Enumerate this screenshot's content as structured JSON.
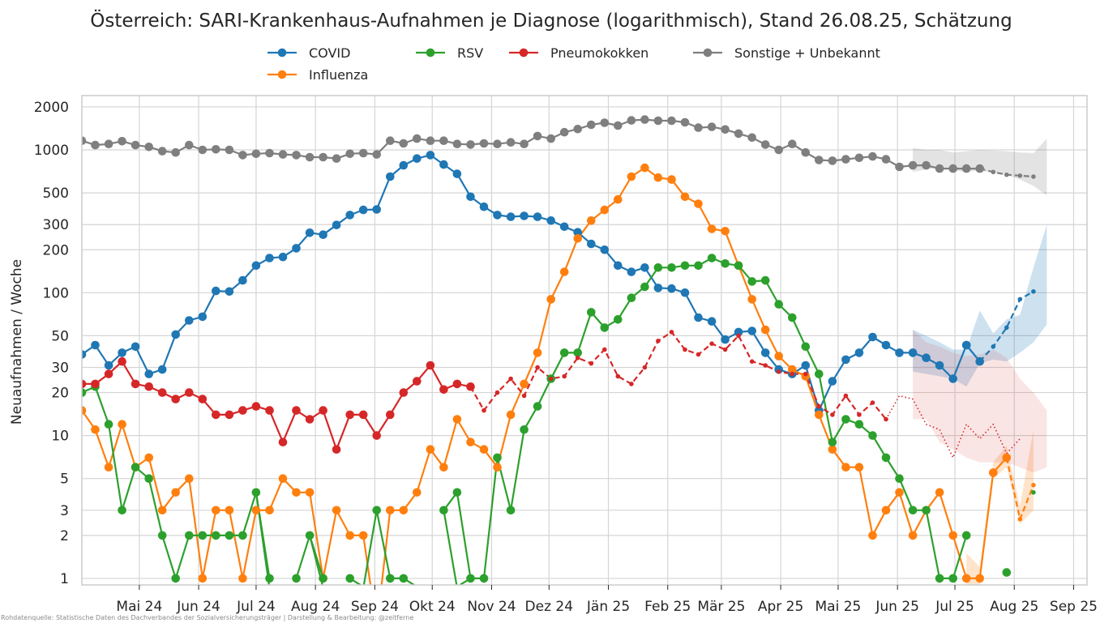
{
  "chart_data": {
    "type": "line",
    "title": "Österreich: SARI-Krankenhaus-Aufnahmen je Diagnose (logarithmisch), Stand 26.08.25, Schätzung",
    "ylabel": "Neuaufnahmen / Woche",
    "xlabel": "",
    "y_scale": "log",
    "ylim": [
      0.9,
      2400
    ],
    "xlim": [
      "2024-04-01",
      "2025-09-08"
    ],
    "grid": true,
    "legend_position": "top-center",
    "y_ticks": [
      1,
      2,
      3,
      5,
      10,
      20,
      30,
      50,
      100,
      200,
      300,
      500,
      1000,
      2000
    ],
    "x_ticks": [
      {
        "date": "2024-05-01",
        "label": "Mai 24"
      },
      {
        "date": "2024-06-01",
        "label": "Jun 24"
      },
      {
        "date": "2024-07-01",
        "label": "Jul 24"
      },
      {
        "date": "2024-08-01",
        "label": "Aug 24"
      },
      {
        "date": "2024-09-01",
        "label": "Sep 24"
      },
      {
        "date": "2024-10-01",
        "label": "Okt 24"
      },
      {
        "date": "2024-11-01",
        "label": "Nov 24"
      },
      {
        "date": "2024-12-01",
        "label": "Dez 24"
      },
      {
        "date": "2025-01-01",
        "label": "Jän 25"
      },
      {
        "date": "2025-02-01",
        "label": "Feb 25"
      },
      {
        "date": "2025-03-01",
        "label": "Mär 25"
      },
      {
        "date": "2025-04-01",
        "label": "Apr 25"
      },
      {
        "date": "2025-05-01",
        "label": "Mai 25"
      },
      {
        "date": "2025-06-01",
        "label": "Jun 25"
      },
      {
        "date": "2025-07-01",
        "label": "Jul 25"
      },
      {
        "date": "2025-08-01",
        "label": "Aug 25"
      },
      {
        "date": "2025-09-01",
        "label": "Sep 25"
      }
    ],
    "x_start": "2024-04-01",
    "x_step_days": 7,
    "series": [
      {
        "name": "COVID",
        "color": "#1f77b4",
        "values": [
          37,
          43,
          31,
          38,
          42,
          27,
          29,
          51,
          64,
          68,
          103,
          102,
          122,
          155,
          175,
          178,
          205,
          263,
          255,
          298,
          350,
          380,
          383,
          650,
          780,
          870,
          920,
          790,
          680,
          470,
          400,
          350,
          340,
          345,
          340,
          320,
          290,
          265,
          220,
          200,
          155,
          140,
          150,
          108,
          107,
          100,
          67,
          63,
          47,
          53,
          54,
          38,
          29,
          27,
          31,
          15,
          24,
          34,
          38,
          49,
          43,
          38,
          38,
          35,
          31,
          25,
          43,
          33,
          42,
          57,
          90,
          102
        ],
        "segments": [
          {
            "from": 0,
            "to": 66,
            "style": "solid",
            "markers": true
          },
          {
            "from": 66,
            "to": 67,
            "style": "solid",
            "markers": true
          },
          {
            "from": 67,
            "to": 71,
            "style": "dashed",
            "markers": "small"
          }
        ],
        "band": {
          "from": 62,
          "lower": [
            28,
            27,
            26,
            25,
            22,
            32,
            34,
            33,
            38,
            45,
            60
          ],
          "upper": [
            55,
            50,
            45,
            40,
            40,
            75,
            52,
            65,
            70,
            150,
            300
          ]
        }
      },
      {
        "name": "Influenza",
        "color": "#ff7f0e",
        "values": [
          15,
          11,
          6,
          12,
          6,
          7,
          3,
          4,
          5,
          1,
          3,
          3,
          1,
          3,
          3,
          5,
          4,
          4,
          1,
          3,
          2,
          2,
          0,
          3,
          3,
          4,
          8,
          6,
          13,
          9,
          8,
          6,
          14,
          23,
          38,
          90,
          140,
          240,
          320,
          380,
          450,
          650,
          750,
          640,
          620,
          470,
          420,
          280,
          270,
          155,
          90,
          55,
          36,
          29,
          26,
          14,
          8,
          6,
          6,
          2,
          3,
          4,
          2,
          3,
          4,
          2,
          1,
          1,
          5.5,
          7,
          2.6,
          4.5
        ],
        "segments": [
          {
            "from": 0,
            "to": 69,
            "style": "solid",
            "markers": true
          },
          {
            "from": 69,
            "to": 71,
            "style": "dashed",
            "markers": "small"
          }
        ],
        "band": {
          "from": 66,
          "lower": [
            0.9,
            0.9,
            5,
            6,
            2.4,
            3
          ],
          "upper": [
            1.5,
            1.2,
            6.5,
            8.5,
            3.2,
            11
          ]
        }
      },
      {
        "name": "RSV",
        "color": "#2ca02c",
        "values": [
          20,
          22,
          12,
          3,
          6,
          5,
          2,
          1,
          2,
          2,
          2,
          2,
          2,
          4,
          1,
          null,
          1,
          2,
          1,
          null,
          1,
          null,
          3,
          1,
          1,
          null,
          null,
          3,
          4,
          1,
          1,
          7,
          3,
          11,
          16,
          25,
          38,
          38,
          73,
          57,
          65,
          92,
          110,
          150,
          150,
          155,
          155,
          175,
          160,
          155,
          120,
          122,
          83,
          67,
          42,
          27,
          9,
          13,
          12,
          10,
          7,
          5,
          3,
          3,
          1,
          1,
          2,
          null,
          null,
          1.1,
          null,
          4
        ],
        "segments": [
          {
            "from": 0,
            "to": 66,
            "style": "solid",
            "markers": true
          },
          {
            "from": 69,
            "to": 69,
            "style": "solid",
            "markers": true
          },
          {
            "from": 70,
            "to": 71,
            "style": "dashed",
            "markers": "small"
          }
        ],
        "drops": [
          14,
          18,
          20,
          21,
          25,
          28
        ]
      },
      {
        "name": "Pneumokokken",
        "color": "#d62728",
        "values": [
          23,
          23,
          27,
          33,
          23,
          22,
          20,
          18,
          20,
          18,
          14,
          14,
          15,
          16,
          15,
          9,
          15,
          13,
          15,
          8,
          14,
          14,
          10,
          14,
          20,
          24,
          31,
          21,
          23,
          22,
          15,
          20,
          25,
          19,
          30,
          25,
          26,
          35,
          32,
          40,
          26,
          23,
          30,
          46,
          53,
          40,
          37,
          44,
          40,
          50,
          33,
          31,
          28,
          27,
          27,
          16,
          14,
          19,
          14,
          17,
          13,
          19,
          18,
          12,
          11,
          7,
          12,
          9.5,
          12,
          7.5,
          9.5
        ],
        "segments": [
          {
            "from": 0,
            "to": 29,
            "style": "solid",
            "markers": true
          },
          {
            "from": 29,
            "to": 60,
            "style": "dashed",
            "markers": "small"
          },
          {
            "from": 60,
            "to": 70,
            "style": "dotted",
            "markers": false
          }
        ],
        "band": {
          "from": 62,
          "lower": [
            13,
            13,
            9,
            8,
            7,
            6.5,
            6.5,
            6.5,
            6,
            5.5,
            6
          ],
          "upper": [
            55,
            45,
            42,
            38,
            36,
            37,
            40,
            35,
            25,
            20,
            15
          ]
        }
      },
      {
        "name": "Sonstige + Unbekannt",
        "color": "#7f7f7f",
        "values": [
          1160,
          1080,
          1100,
          1150,
          1080,
          1050,
          980,
          960,
          1080,
          1000,
          1010,
          1000,
          920,
          940,
          950,
          930,
          920,
          890,
          890,
          870,
          940,
          950,
          930,
          1160,
          1110,
          1200,
          1160,
          1160,
          1100,
          1090,
          1110,
          1100,
          1130,
          1100,
          1250,
          1200,
          1330,
          1400,
          1500,
          1550,
          1480,
          1610,
          1630,
          1600,
          1600,
          1560,
          1430,
          1450,
          1390,
          1300,
          1220,
          1090,
          1000,
          1100,
          960,
          850,
          840,
          860,
          880,
          900,
          860,
          760,
          780,
          780,
          740,
          740,
          740,
          740,
          700,
          670,
          660,
          650
        ],
        "segments": [
          {
            "from": 0,
            "to": 67,
            "style": "solid",
            "markers": true
          },
          {
            "from": 67,
            "to": 71,
            "style": "dashed",
            "markers": "small"
          }
        ],
        "band": {
          "from": 62,
          "lower": [
            700,
            730,
            750,
            720,
            700,
            720,
            690,
            670,
            620,
            560,
            480
          ],
          "upper": [
            1030,
            1000,
            1000,
            960,
            980,
            1000,
            990,
            980,
            960,
            950,
            1200
          ]
        }
      }
    ]
  },
  "footnote": "Rohdatenquelle: Statistische Daten des Dachverbandes der Sozialversicherungsträger | Darstellung & Bearbeitung: @zeitferne"
}
